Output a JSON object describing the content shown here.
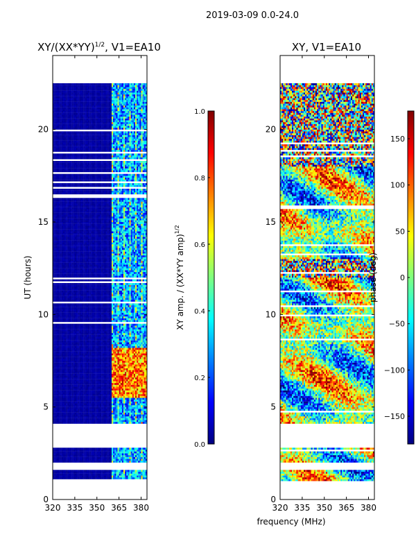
{
  "figure_title": "2019-03-09 0.0-24.0",
  "colors": {
    "missing": "#ffffff",
    "axis": "#000000",
    "jet": [
      "#00007f",
      "#0000ff",
      "#007fff",
      "#00ffff",
      "#7fff7f",
      "#ffff00",
      "#ff7f00",
      "#ff0000",
      "#7f0000"
    ]
  },
  "chart_data": [
    {
      "type": "heatmap",
      "name": "amplitude",
      "title_main": "XY/(XX*YY)",
      "title_sup": "1/2",
      "title_tail": ", V1=EA10",
      "xlabel": "",
      "ylabel": "UT (hours)",
      "xlim": [
        320,
        384
      ],
      "ylim": [
        0,
        24
      ],
      "xticks": [
        320,
        335,
        350,
        365,
        380
      ],
      "yticks": [
        0,
        5,
        10,
        15,
        20
      ],
      "data_time_ranges": [
        [
          1.0,
          1.6
        ],
        [
          2.0,
          2.8
        ],
        [
          4.1,
          22.5
        ]
      ],
      "high_channel_start": 360,
      "peak_time_range": [
        5.5,
        8.2
      ],
      "colorbar": {
        "label_main": "XY amp. / (XX*YY amp)",
        "label_sup": "1/2",
        "range": [
          0.0,
          1.0
        ],
        "ticks": [
          "0.0",
          "0.2",
          "0.4",
          "0.6",
          "0.8",
          "1.0"
        ]
      }
    },
    {
      "type": "heatmap",
      "name": "phase",
      "title_main": "XY, V1=EA10",
      "title_sup": "",
      "title_tail": "",
      "xlabel": "frequency (MHz)",
      "ylabel": "",
      "xlim": [
        320,
        384
      ],
      "ylim": [
        0,
        24
      ],
      "xticks": [
        320,
        335,
        350,
        365,
        380
      ],
      "yticks": [
        0,
        5,
        10,
        15,
        20
      ],
      "data_time_ranges": [
        [
          1.0,
          1.6
        ],
        [
          2.0,
          2.8
        ],
        [
          4.1,
          22.5
        ]
      ],
      "colorbar": {
        "label_main": "phase (deg)",
        "label_sup": "",
        "range": [
          -180,
          180
        ],
        "ticks": [
          "-150",
          "-100",
          "-50",
          "0",
          "50",
          "100",
          "150"
        ]
      }
    }
  ]
}
